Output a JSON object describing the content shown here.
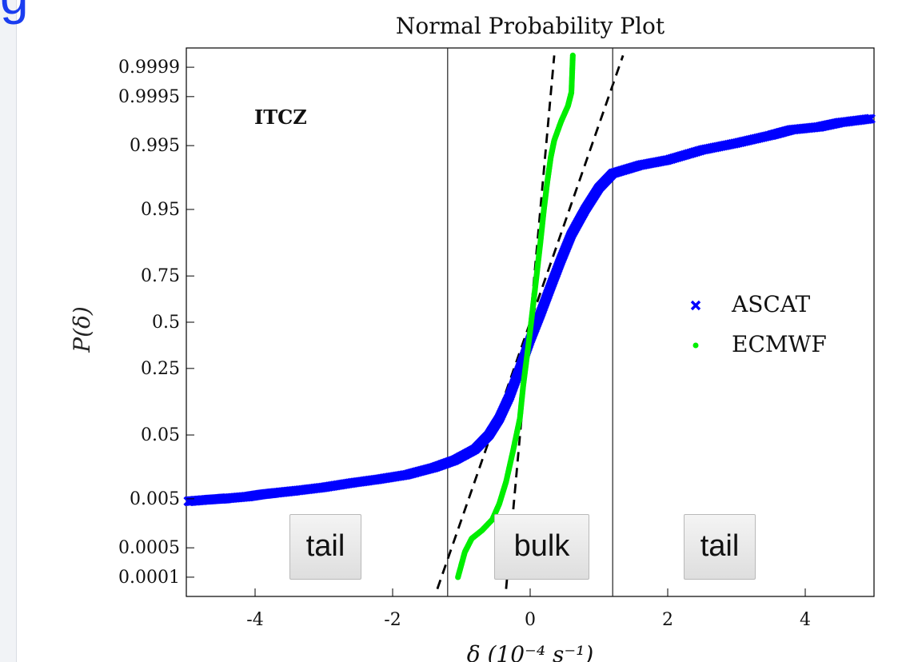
{
  "chart_data": {
    "type": "scatter",
    "title": "Normal Probability Plot",
    "xlabel": "δ     (10⁻⁴ s⁻¹)",
    "ylabel": "P(δ)",
    "annotation": "ITCZ",
    "xlim": [
      -5,
      5
    ],
    "xticks": [
      -4,
      -2,
      0,
      2,
      4
    ],
    "y_scale": "normal-probability",
    "yticks": [
      0.0001,
      0.0005,
      0.005,
      0.05,
      0.25,
      0.5,
      0.75,
      0.95,
      0.995,
      0.9995,
      0.9999
    ],
    "ytick_labels": [
      "0.0001",
      "0.0005",
      "0.005",
      "0.05",
      "0.25",
      "0.5",
      "0.75",
      "0.95",
      "0.995",
      "0.9995",
      "0.9999"
    ],
    "legend_position": "right",
    "vertical_lines": [
      -1.2,
      1.2
    ],
    "series": [
      {
        "name": "ASCAT",
        "marker": "x",
        "color": "#0000ff",
        "points": [
          [
            -4.97,
            0.0045
          ],
          [
            -4.7,
            0.0048
          ],
          [
            -4.5,
            0.005
          ],
          [
            -4.4,
            0.0051
          ],
          [
            -4.1,
            0.0055
          ],
          [
            -3.9,
            0.006
          ],
          [
            -3.7,
            0.0064
          ],
          [
            -3.4,
            0.007
          ],
          [
            -3.0,
            0.008
          ],
          [
            -2.6,
            0.0095
          ],
          [
            -2.2,
            0.011
          ],
          [
            -1.8,
            0.013
          ],
          [
            -1.4,
            0.017
          ],
          [
            -1.1,
            0.022
          ],
          [
            -0.8,
            0.032
          ],
          [
            -0.6,
            0.05
          ],
          [
            -0.45,
            0.08
          ],
          [
            -0.3,
            0.14
          ],
          [
            -0.15,
            0.25
          ],
          [
            0.0,
            0.4
          ],
          [
            0.15,
            0.55
          ],
          [
            0.3,
            0.7
          ],
          [
            0.45,
            0.82
          ],
          [
            0.6,
            0.9
          ],
          [
            0.8,
            0.95
          ],
          [
            1.0,
            0.975
          ],
          [
            1.2,
            0.985
          ],
          [
            1.6,
            0.989
          ],
          [
            2.0,
            0.991
          ],
          [
            2.5,
            0.994
          ],
          [
            3.0,
            0.9955
          ],
          [
            3.5,
            0.9968
          ],
          [
            3.8,
            0.9975
          ],
          [
            4.2,
            0.9978
          ],
          [
            4.5,
            0.9982
          ],
          [
            4.95,
            0.9985
          ]
        ]
      },
      {
        "name": "ECMWF",
        "marker": "dot",
        "color": "#00ee00",
        "points": [
          [
            -1.05,
            0.0001
          ],
          [
            -0.95,
            0.0004
          ],
          [
            -0.85,
            0.0008
          ],
          [
            -0.7,
            0.0012
          ],
          [
            -0.55,
            0.002
          ],
          [
            -0.45,
            0.004
          ],
          [
            -0.35,
            0.01
          ],
          [
            -0.25,
            0.03
          ],
          [
            -0.15,
            0.08
          ],
          [
            -0.1,
            0.18
          ],
          [
            -0.05,
            0.3
          ],
          [
            0.0,
            0.45
          ],
          [
            0.05,
            0.62
          ],
          [
            0.1,
            0.77
          ],
          [
            0.15,
            0.88
          ],
          [
            0.2,
            0.95
          ],
          [
            0.25,
            0.98
          ],
          [
            0.3,
            0.992
          ],
          [
            0.35,
            0.996
          ],
          [
            0.45,
            0.9983
          ],
          [
            0.55,
            0.9992
          ],
          [
            0.6,
            0.9996
          ],
          [
            0.62,
            0.99995
          ]
        ]
      }
    ],
    "fit_lines": [
      {
        "name": "",
        "points": [
          [
            -1.35,
            5e-05
          ],
          [
            1.35,
            0.99995
          ]
        ]
      },
      {
        "name": "",
        "points": [
          [
            -0.35,
            5e-05
          ],
          [
            0.35,
            0.99995
          ]
        ]
      }
    ],
    "region_labels": [
      "tail",
      "bulk",
      "tail"
    ]
  }
}
